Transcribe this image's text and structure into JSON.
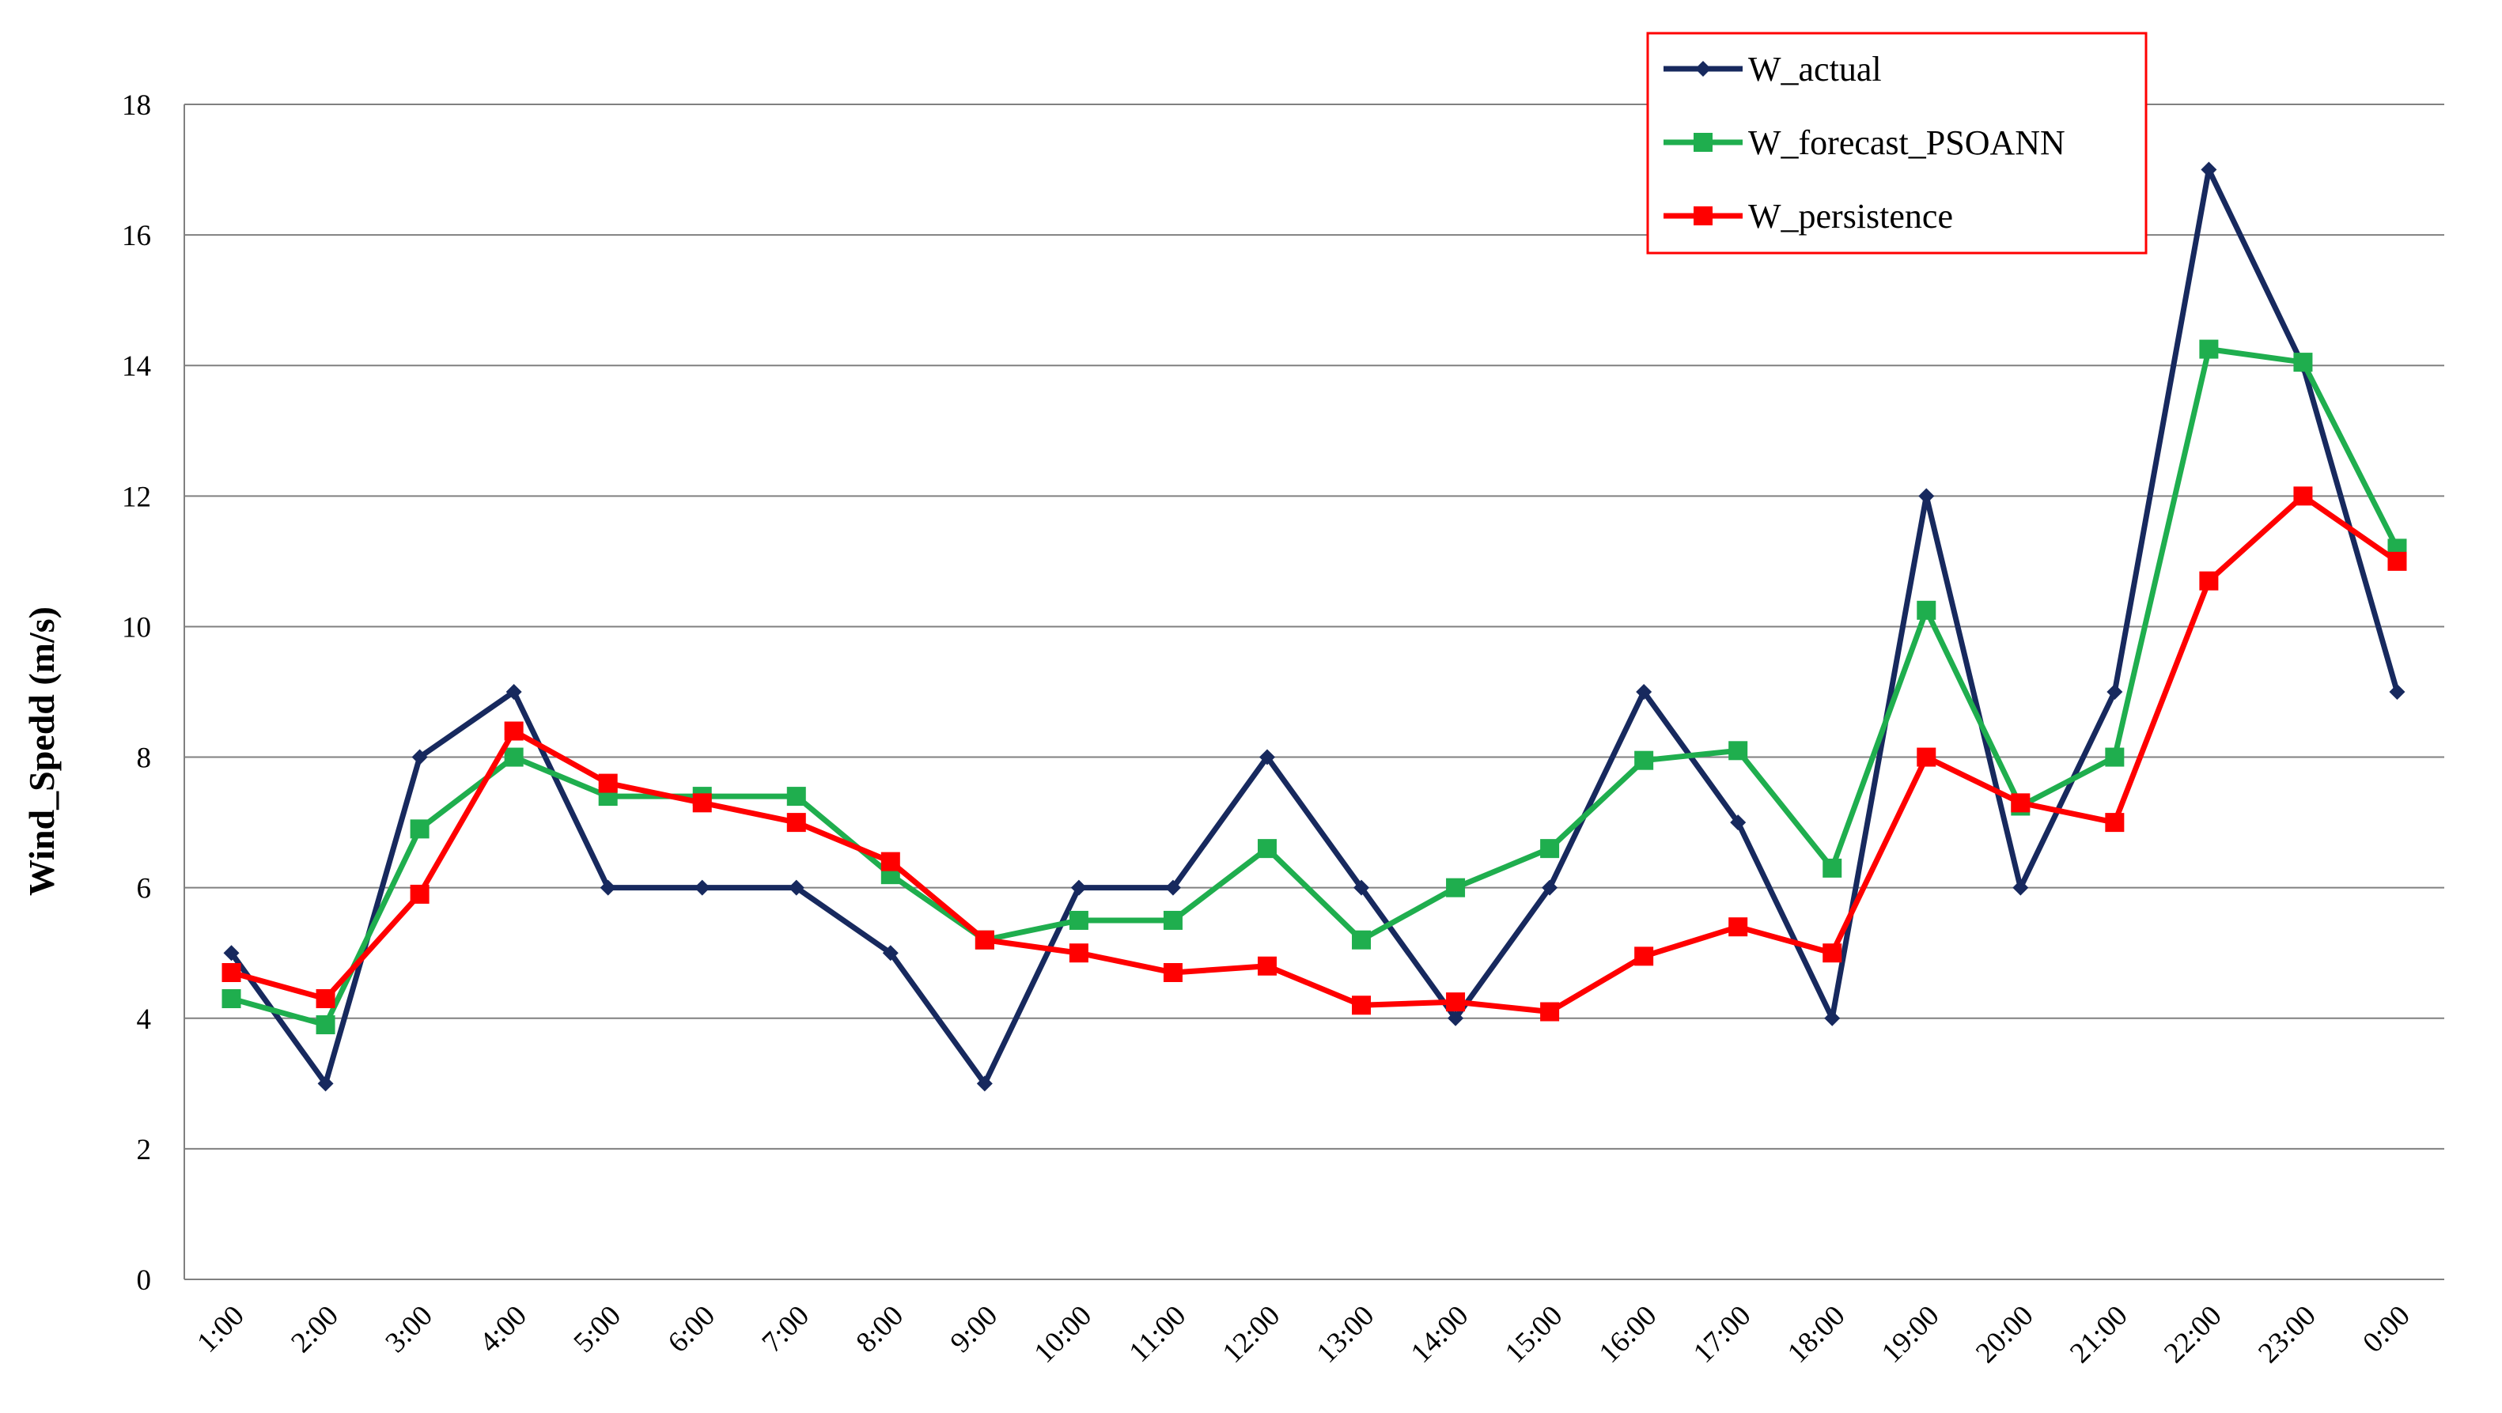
{
  "chart_data": {
    "type": "line",
    "title": "",
    "xlabel": "",
    "ylabel": "Wind_Spedd (m/s)",
    "ylim": [
      0,
      18
    ],
    "ytick_step": 2,
    "yticks": [
      "0",
      "2",
      "4",
      "6",
      "8",
      "10",
      "12",
      "14",
      "16",
      "18"
    ],
    "grid": "horizontal",
    "legend_position": "top-right",
    "categories": [
      "1:00",
      "2:00",
      "3:00",
      "4:00",
      "5:00",
      "6:00",
      "7:00",
      "8:00",
      "9:00",
      "10:00",
      "11:00",
      "12:00",
      "13:00",
      "14:00",
      "15:00",
      "16:00",
      "17:00",
      "18:00",
      "19:00",
      "20:00",
      "21:00",
      "22:00",
      "23:00",
      "0:00"
    ],
    "series": [
      {
        "name": "W_actual",
        "color": "#17295e",
        "marker": "diamond",
        "values": [
          5,
          3,
          8,
          9,
          6,
          6,
          6,
          5,
          3,
          6,
          6,
          8,
          6,
          4,
          6,
          9,
          7,
          4,
          12,
          6,
          9,
          17,
          14,
          9
        ]
      },
      {
        "name": "W_forecast_PSOANN",
        "color": "#1fae4e",
        "marker": "square",
        "values": [
          4.3,
          3.9,
          6.9,
          8.0,
          7.4,
          7.4,
          7.4,
          6.2,
          5.2,
          5.5,
          5.5,
          6.6,
          5.2,
          6.0,
          6.6,
          7.95,
          8.1,
          6.3,
          10.25,
          7.25,
          8.0,
          14.25,
          14.05,
          11.2
        ]
      },
      {
        "name": "W_persistence",
        "color": "#ff0000",
        "marker": "square",
        "values": [
          4.7,
          4.3,
          5.9,
          8.4,
          7.6,
          7.3,
          7.0,
          6.4,
          5.2,
          5.0,
          4.7,
          4.8,
          4.2,
          4.25,
          4.1,
          4.95,
          5.4,
          5.0,
          8.0,
          7.3,
          7.0,
          10.7,
          12.0,
          11.0
        ]
      }
    ],
    "legend_border_color": "#ff0000",
    "grid_color": "#808080"
  }
}
